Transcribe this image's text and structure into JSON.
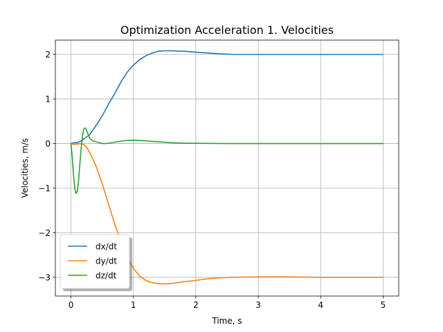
{
  "chart_data": {
    "type": "line",
    "title": "Optimization Acceleration 1. Velocities",
    "xlabel": "Time, s",
    "ylabel": "Velocities, m/s",
    "xlim": [
      -0.25,
      5.25
    ],
    "ylim": [
      -3.42,
      2.32
    ],
    "xticks": [
      0,
      1,
      2,
      3,
      4,
      5
    ],
    "xtick_labels": [
      "0",
      "1",
      "2",
      "3",
      "4",
      "5"
    ],
    "yticks": [
      -3,
      -2,
      -1,
      0,
      1,
      2
    ],
    "ytick_labels": [
      "−3",
      "−2",
      "−1",
      "0",
      "1",
      "2"
    ],
    "grid": true,
    "legend_position": "lower-left",
    "series": [
      {
        "name": "dx/dt",
        "color": "#1f77b4",
        "points": [
          [
            0,
            0
          ],
          [
            0.05,
            0.02
          ],
          [
            0.1,
            0.02
          ],
          [
            0.15,
            0.05
          ],
          [
            0.2,
            0.1
          ],
          [
            0.25,
            0.15
          ],
          [
            0.3,
            0.2
          ],
          [
            0.4,
            0.4
          ],
          [
            0.5,
            0.62
          ],
          [
            0.6,
            0.88
          ],
          [
            0.7,
            1.12
          ],
          [
            0.8,
            1.38
          ],
          [
            0.9,
            1.6
          ],
          [
            1.0,
            1.76
          ],
          [
            1.1,
            1.88
          ],
          [
            1.2,
            1.97
          ],
          [
            1.3,
            2.03
          ],
          [
            1.4,
            2.07
          ],
          [
            1.5,
            2.08
          ],
          [
            1.6,
            2.08
          ],
          [
            1.7,
            2.075
          ],
          [
            1.8,
            2.07
          ],
          [
            2.0,
            2.05
          ],
          [
            2.2,
            2.03
          ],
          [
            2.4,
            2.01
          ],
          [
            2.6,
            2.0
          ],
          [
            2.8,
            2.0
          ],
          [
            3.0,
            2.0
          ],
          [
            3.5,
            2.0
          ],
          [
            4.0,
            2.0
          ],
          [
            4.5,
            2.0
          ],
          [
            5.0,
            2.0
          ]
        ]
      },
      {
        "name": "dy/dt",
        "color": "#ff7f0e",
        "points": [
          [
            0,
            0
          ],
          [
            0.05,
            -0.02
          ],
          [
            0.1,
            -0.01
          ],
          [
            0.15,
            0.0
          ],
          [
            0.2,
            -0.02
          ],
          [
            0.25,
            -0.08
          ],
          [
            0.3,
            -0.2
          ],
          [
            0.4,
            -0.5
          ],
          [
            0.5,
            -0.9
          ],
          [
            0.6,
            -1.35
          ],
          [
            0.7,
            -1.8
          ],
          [
            0.8,
            -2.2
          ],
          [
            0.9,
            -2.55
          ],
          [
            1.0,
            -2.8
          ],
          [
            1.1,
            -2.97
          ],
          [
            1.2,
            -3.07
          ],
          [
            1.3,
            -3.12
          ],
          [
            1.4,
            -3.14
          ],
          [
            1.5,
            -3.15
          ],
          [
            1.6,
            -3.14
          ],
          [
            1.7,
            -3.12
          ],
          [
            1.8,
            -3.1
          ],
          [
            2.0,
            -3.07
          ],
          [
            2.2,
            -3.03
          ],
          [
            2.4,
            -3.01
          ],
          [
            2.6,
            -3.0
          ],
          [
            3.0,
            -2.99
          ],
          [
            3.5,
            -2.99
          ],
          [
            4.0,
            -3.0
          ],
          [
            4.5,
            -3.0
          ],
          [
            5.0,
            -3.0
          ]
        ]
      },
      {
        "name": "dz/dt",
        "color": "#2ca02c",
        "points": [
          [
            0,
            0
          ],
          [
            0.02,
            -0.3
          ],
          [
            0.04,
            -0.7
          ],
          [
            0.06,
            -1.0
          ],
          [
            0.08,
            -1.12
          ],
          [
            0.1,
            -1.08
          ],
          [
            0.12,
            -0.85
          ],
          [
            0.14,
            -0.5
          ],
          [
            0.16,
            -0.15
          ],
          [
            0.18,
            0.12
          ],
          [
            0.2,
            0.3
          ],
          [
            0.22,
            0.35
          ],
          [
            0.24,
            0.33
          ],
          [
            0.27,
            0.22
          ],
          [
            0.3,
            0.12
          ],
          [
            0.35,
            0.06
          ],
          [
            0.4,
            0.04
          ],
          [
            0.45,
            0.02
          ],
          [
            0.5,
            0.0
          ],
          [
            0.55,
            0.0
          ],
          [
            0.6,
            0.005
          ],
          [
            0.7,
            0.03
          ],
          [
            0.8,
            0.055
          ],
          [
            0.9,
            0.07
          ],
          [
            1.0,
            0.075
          ],
          [
            1.1,
            0.07
          ],
          [
            1.2,
            0.06
          ],
          [
            1.4,
            0.04
          ],
          [
            1.6,
            0.02
          ],
          [
            1.8,
            0.01
          ],
          [
            2.0,
            0.005
          ],
          [
            2.5,
            0.0
          ],
          [
            3.0,
            0.0
          ],
          [
            4.0,
            0.0
          ],
          [
            5.0,
            0.0
          ]
        ]
      }
    ]
  }
}
